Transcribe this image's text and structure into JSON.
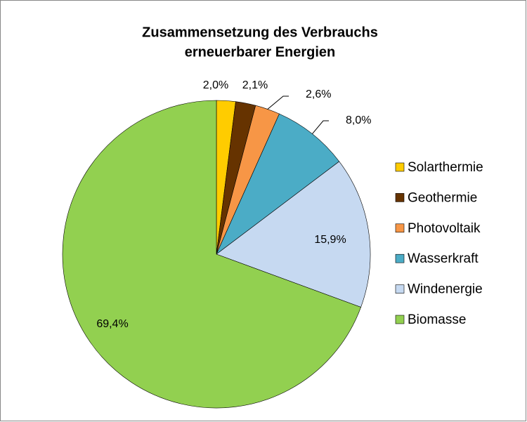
{
  "chart_data": {
    "type": "pie",
    "title": [
      "Zusammensetzung des Verbrauchs",
      "erneuerbarer Energien"
    ],
    "categories": [
      "Solarthermie",
      "Geothermie",
      "Photovoltaik",
      "Wasserkraft",
      "Windenergie",
      "Biomasse"
    ],
    "values": [
      2.0,
      2.1,
      2.6,
      8.0,
      15.9,
      69.4
    ],
    "value_labels": [
      "2,0%",
      "2,1%",
      "2,6%",
      "8,0%",
      "15,9%",
      "69,4%"
    ],
    "colors": [
      "#ffcc00",
      "#663300",
      "#f79646",
      "#4bacc6",
      "#c6d9f1",
      "#92d050"
    ],
    "legend": "right"
  }
}
